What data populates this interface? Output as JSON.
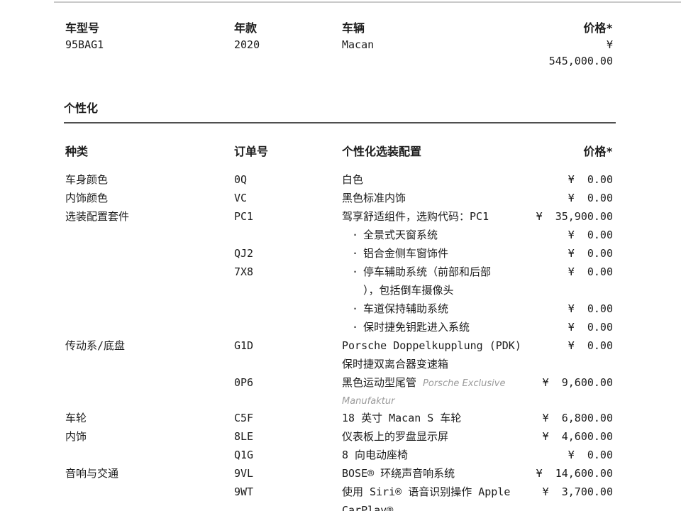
{
  "document": {
    "vehicle_header": {
      "columns": [
        {
          "label": "车型号",
          "value": "95BAG1"
        },
        {
          "label": "年款",
          "value": "2020"
        },
        {
          "label": "车辆",
          "value": "Macan"
        },
        {
          "label": "价格*",
          "value_lines": [
            "¥",
            "545,000.00"
          ]
        }
      ]
    },
    "section_title": "个性化",
    "table": {
      "headers": [
        "种类",
        "订单号",
        "个性化选装配置",
        "价格*"
      ],
      "rows": [
        {
          "category": "车身颜色",
          "code": "0Q",
          "bullet": false,
          "desc_lines": [
            [
              {
                "text": "白色",
                "italic": false
              }
            ]
          ],
          "price": "¥  0.00"
        },
        {
          "category": "内饰颜色",
          "code": "VC",
          "bullet": false,
          "desc_lines": [
            [
              {
                "text": "黑色标准内饰",
                "italic": false
              }
            ]
          ],
          "price": "¥  0.00"
        },
        {
          "category": "选装配置套件",
          "code": "PC1",
          "bullet": false,
          "desc_lines": [
            [
              {
                "text": "驾享舒适组件，选购代码：PC1",
                "italic": false
              }
            ]
          ],
          "price": "¥  35,900.00"
        },
        {
          "category": "",
          "code": "",
          "bullet": true,
          "desc_lines": [
            [
              {
                "text": "全景式天窗系统",
                "italic": false
              }
            ]
          ],
          "price": "¥  0.00"
        },
        {
          "category": "",
          "code": "QJ2",
          "bullet": true,
          "desc_lines": [
            [
              {
                "text": "铝合金侧车窗饰件",
                "italic": false
              }
            ]
          ],
          "price": "¥  0.00"
        },
        {
          "category": "",
          "code": "7X8",
          "bullet": true,
          "desc_lines": [
            [
              {
                "text": "停车辅助系统（前部和后部",
                "italic": false
              }
            ],
            [
              {
                "text": "），包括倒车摄像头",
                "italic": false
              }
            ]
          ],
          "price": "¥  0.00"
        },
        {
          "category": "",
          "code": "",
          "bullet": true,
          "desc_lines": [
            [
              {
                "text": "车道保持辅助系统",
                "italic": false
              }
            ]
          ],
          "price": "¥  0.00"
        },
        {
          "category": "",
          "code": "",
          "bullet": true,
          "desc_lines": [
            [
              {
                "text": "保时捷免钥匙进入系统",
                "italic": false
              }
            ]
          ],
          "price": "¥  0.00"
        },
        {
          "category": "传动系/底盘",
          "code": "G1D",
          "bullet": false,
          "desc_lines": [
            [
              {
                "text": "Porsche Doppelkupplung (PDK)",
                "italic": false
              }
            ],
            [
              {
                "text": "保时捷双离合器变速箱",
                "italic": false
              }
            ]
          ],
          "price": "¥  0.00"
        },
        {
          "category": "",
          "code": "0P6",
          "bullet": false,
          "desc_lines": [
            [
              {
                "text": "黑色运动型尾管 ",
                "italic": false
              },
              {
                "text": "Porsche Exclusive",
                "italic": true
              }
            ],
            [
              {
                "text": "Manufaktur",
                "italic": true
              }
            ]
          ],
          "price": "¥  9,600.00"
        },
        {
          "category": "车轮",
          "code": "C5F",
          "bullet": false,
          "desc_lines": [
            [
              {
                "text": "18 英寸 Macan S 车轮",
                "italic": false
              }
            ]
          ],
          "price": "¥  6,800.00"
        },
        {
          "category": "内饰",
          "code": "8LE",
          "bullet": false,
          "desc_lines": [
            [
              {
                "text": "仪表板上的罗盘显示屏",
                "italic": false
              }
            ]
          ],
          "price": "¥  4,600.00"
        },
        {
          "category": "",
          "code": "Q1G",
          "bullet": false,
          "desc_lines": [
            [
              {
                "text": "8 向电动座椅",
                "italic": false
              }
            ]
          ],
          "price": "¥  0.00"
        },
        {
          "category": "音响与交通",
          "code": "9VL",
          "bullet": false,
          "desc_lines": [
            [
              {
                "text": "BOSE® 环绕声音响系统",
                "italic": false
              }
            ]
          ],
          "price": "¥  14,600.00"
        },
        {
          "category": "",
          "code": "9WT",
          "bullet": false,
          "desc_lines": [
            [
              {
                "text": "使用 Siri® 语音识别操作 Apple",
                "italic": false
              }
            ],
            [
              {
                "text": "CarPlay®",
                "italic": false
              }
            ]
          ],
          "price": "¥  3,700.00"
        }
      ]
    }
  }
}
